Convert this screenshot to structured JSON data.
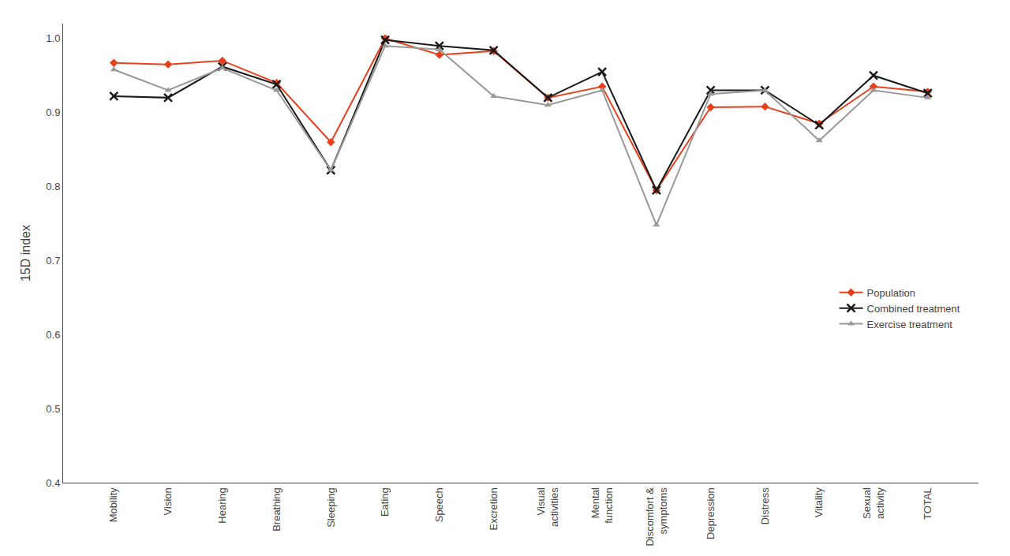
{
  "chart_data": {
    "type": "line",
    "categories": [
      "Mobility",
      "Vision",
      "Hearing",
      "Breathing",
      "Sleeping",
      "Eating",
      "Speech",
      "Excretion",
      "Visual\nactivities",
      "Mental\nfunction",
      "Discomfort &\nsymptoms",
      "Depression",
      "Distress",
      "Vitality",
      "Sexual\nactivity",
      "TOTAL"
    ],
    "series": [
      {
        "name": "Population",
        "color": "#e8401c",
        "marker": "diamond",
        "line_style": "solid",
        "values": [
          0.967,
          0.965,
          0.97,
          0.94,
          0.86,
          1.0,
          0.978,
          0.983,
          0.92,
          0.935,
          0.795,
          0.907,
          0.908,
          0.885,
          0.935,
          0.928
        ]
      },
      {
        "name": "Combined treatment",
        "color": "#1a1a1a",
        "marker": "x",
        "line_style": "solid",
        "values": [
          0.922,
          0.92,
          0.962,
          0.938,
          0.822,
          0.998,
          0.99,
          0.984,
          0.92,
          0.955,
          0.795,
          0.93,
          0.93,
          0.883,
          0.95,
          0.926
        ]
      },
      {
        "name": "Exercise treatment",
        "color": "#999999",
        "marker": "triangle-up",
        "line_style": "solid",
        "values": [
          0.958,
          0.93,
          0.96,
          0.93,
          0.822,
          0.99,
          0.985,
          0.922,
          0.91,
          0.93,
          0.748,
          0.925,
          0.93,
          0.862,
          0.93,
          0.92
        ]
      }
    ],
    "y_label": "15D index",
    "ylim": [
      0.4,
      1.02
    ],
    "yticks": [
      0.4,
      0.5,
      0.6,
      0.7,
      0.8,
      0.9,
      {
        "value": 1.0,
        "label": "1.0"
      }
    ],
    "grid": false,
    "legend": "right"
  }
}
